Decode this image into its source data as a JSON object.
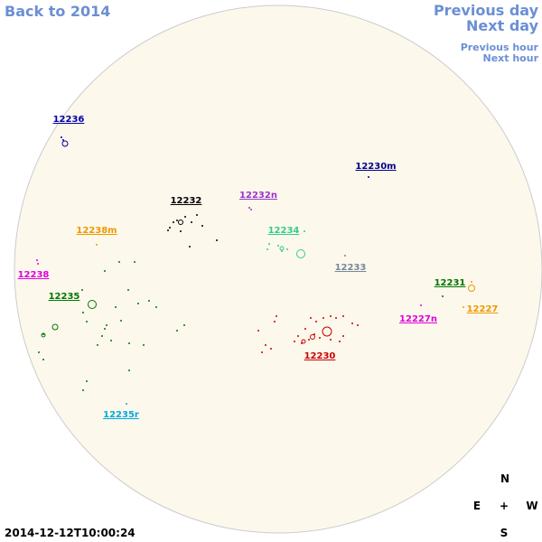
{
  "navigation": {
    "back": "Back to 2014",
    "previous_day": "Previous day",
    "next_day": "Next day",
    "previous_hour": "Previous hour",
    "next_hour": "Next hour"
  },
  "regions": [
    "12236",
    "12230m",
    "12232",
    "12232n",
    "12238m",
    "12234",
    "12238",
    "12233",
    "12231",
    "12235",
    "12227",
    "12227n",
    "12230",
    "12235r"
  ],
  "timestamp": "2014-12-12T10:00:24",
  "compass": {
    "north": "N",
    "east": "E",
    "center": "+",
    "west": "W",
    "south": "S"
  }
}
